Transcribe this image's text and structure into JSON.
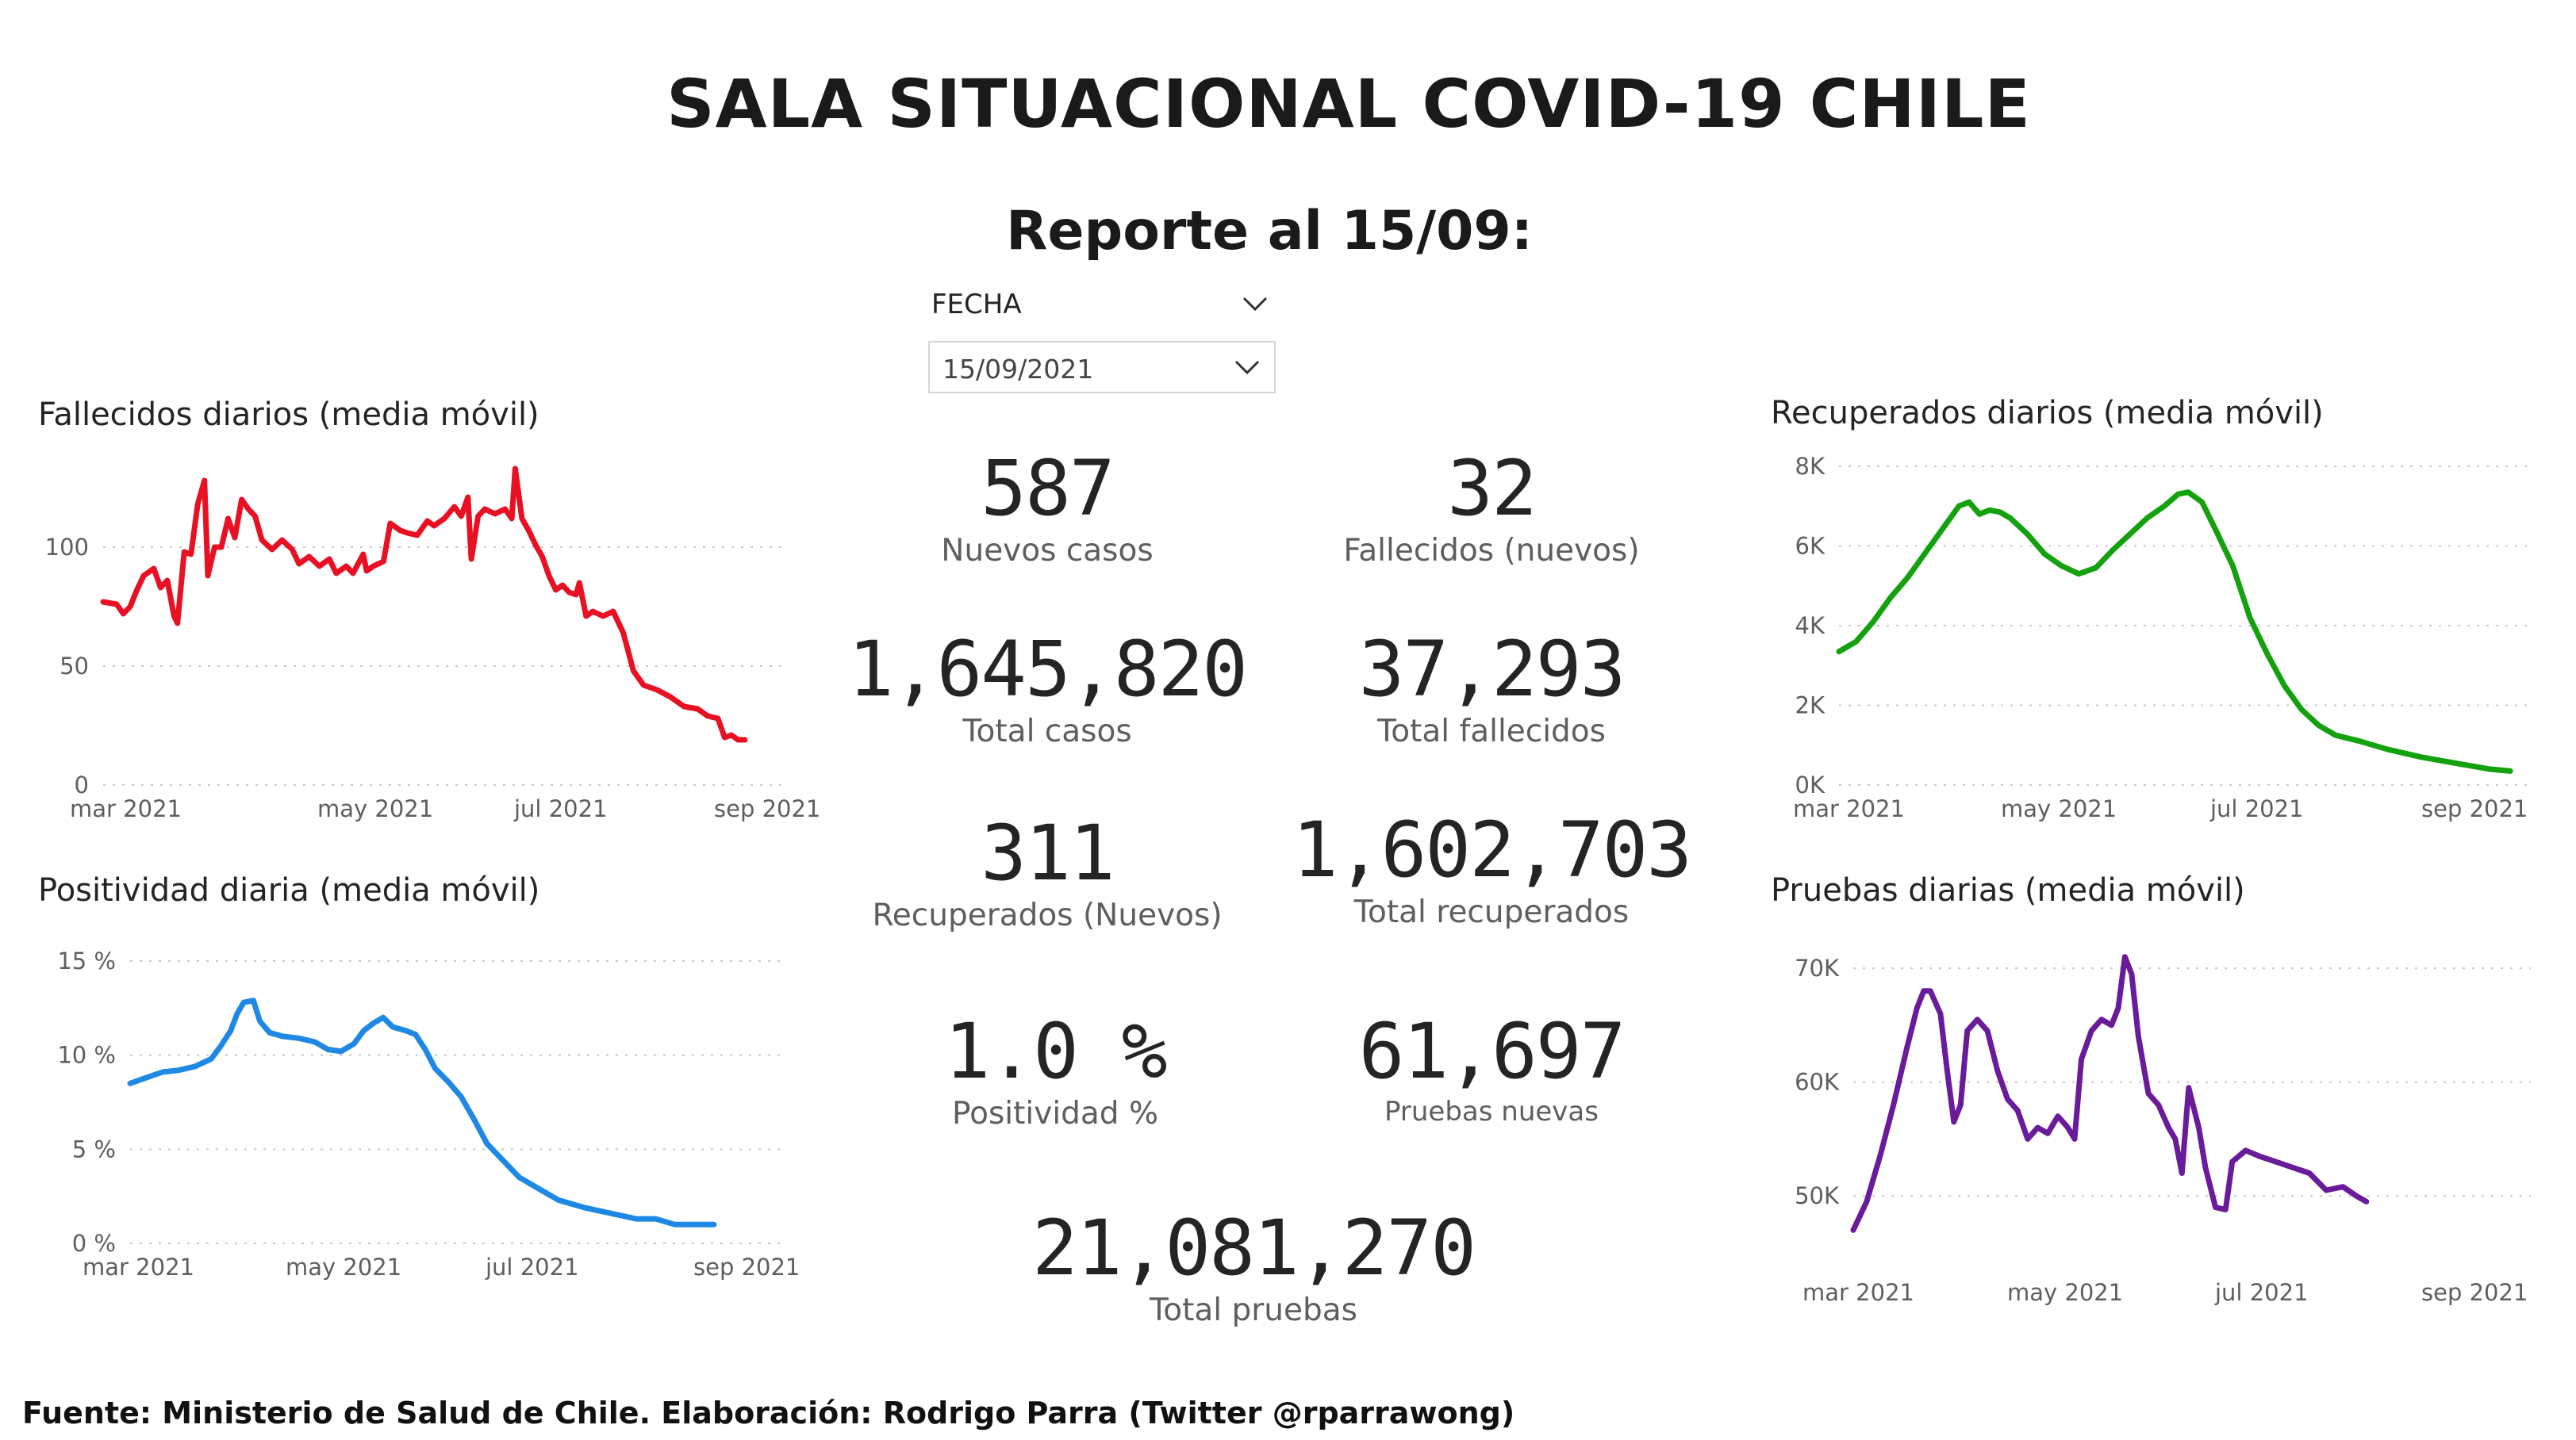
{
  "header": {
    "title": "SALA SITUACIONAL COVID-19 CHILE",
    "report": "Reporte al 15/09:"
  },
  "filter": {
    "label": "FECHA",
    "selected": "15/09/2021"
  },
  "kpis": [
    {
      "value": "587",
      "label": "Nuevos casos"
    },
    {
      "value": "32",
      "label": "Fallecidos (nuevos)"
    },
    {
      "value": "1,645,820",
      "label": "Total casos"
    },
    {
      "value": "37,293",
      "label": "Total fallecidos"
    },
    {
      "value": "311",
      "label": "Recuperados (Nuevos)"
    },
    {
      "value": "1,602,703",
      "label": "Total recuperados"
    },
    {
      "value": "1.0 %",
      "label": "Positividad %"
    },
    {
      "value": "61,697",
      "label": "Pruebas nuevas"
    },
    {
      "value": "21,081,270",
      "label": "Total pruebas"
    }
  ],
  "footer": "Fuente: Ministerio de Salud de Chile. Elaboración: Rodrigo Parra (Twitter @rparrawong)",
  "chart_data": [
    {
      "id": "fallecidos",
      "type": "line",
      "title": "Fallecidos diarios (media móvil)",
      "color": "#e81123",
      "x_tick_labels": [
        "mar 2021",
        "may 2021",
        "jul 2021",
        "sep 2021"
      ],
      "y_tick_labels": [
        "0",
        "50",
        "100"
      ],
      "ylim": [
        0,
        140
      ],
      "xlim": [
        0,
        202
      ],
      "grid": true,
      "points": [
        [
          0,
          77
        ],
        [
          4,
          76
        ],
        [
          6,
          72
        ],
        [
          8,
          75
        ],
        [
          10,
          82
        ],
        [
          12,
          88
        ],
        [
          15,
          91
        ],
        [
          17,
          83
        ],
        [
          19,
          86
        ],
        [
          21,
          71
        ],
        [
          22,
          68
        ],
        [
          24,
          98
        ],
        [
          26,
          97
        ],
        [
          28,
          118
        ],
        [
          30,
          128
        ],
        [
          31,
          88
        ],
        [
          33,
          100
        ],
        [
          35,
          100
        ],
        [
          37,
          112
        ],
        [
          39,
          104
        ],
        [
          41,
          120
        ],
        [
          43,
          116
        ],
        [
          45,
          113
        ],
        [
          47,
          103
        ],
        [
          50,
          99
        ],
        [
          53,
          103
        ],
        [
          56,
          99
        ],
        [
          58,
          93
        ],
        [
          61,
          96
        ],
        [
          64,
          92
        ],
        [
          67,
          95
        ],
        [
          69,
          89
        ],
        [
          72,
          92
        ],
        [
          74,
          89
        ],
        [
          77,
          97
        ],
        [
          78,
          90
        ],
        [
          80,
          92
        ],
        [
          83,
          94
        ],
        [
          85,
          110
        ],
        [
          88,
          107
        ],
        [
          90,
          106
        ],
        [
          93,
          105
        ],
        [
          96,
          111
        ],
        [
          98,
          109
        ],
        [
          101,
          112
        ],
        [
          104,
          117
        ],
        [
          106,
          113
        ],
        [
          108,
          121
        ],
        [
          109,
          95
        ],
        [
          111,
          113
        ],
        [
          113,
          116
        ],
        [
          116,
          114
        ],
        [
          119,
          116
        ],
        [
          121,
          112
        ],
        [
          122,
          133
        ],
        [
          124,
          112
        ],
        [
          126,
          107
        ],
        [
          128,
          101
        ],
        [
          130,
          96
        ],
        [
          132,
          88
        ],
        [
          134,
          82
        ],
        [
          136,
          84
        ],
        [
          138,
          81
        ],
        [
          140,
          80
        ],
        [
          141,
          85
        ],
        [
          143,
          71
        ],
        [
          145,
          73
        ],
        [
          148,
          71
        ],
        [
          151,
          73
        ],
        [
          154,
          64
        ],
        [
          157,
          48
        ],
        [
          160,
          42
        ],
        [
          164,
          40
        ],
        [
          168,
          37
        ],
        [
          172,
          33
        ],
        [
          176,
          32
        ],
        [
          179,
          29
        ],
        [
          182,
          28
        ],
        [
          184,
          20
        ],
        [
          186,
          21
        ],
        [
          188,
          19
        ],
        [
          190,
          19
        ]
      ]
    },
    {
      "id": "positividad",
      "type": "line",
      "title": "Positividad diaria (media móvil)",
      "color": "#1e88e5",
      "x_tick_labels": [
        "mar 2021",
        "may 2021",
        "jul 2021",
        "sep 2021"
      ],
      "y_tick_labels": [
        "0 %",
        "5 %",
        "10 %",
        "15 %"
      ],
      "ylim": [
        0,
        15
      ],
      "xlim": [
        0,
        202
      ],
      "grid": true,
      "points": [
        [
          0,
          8.5
        ],
        [
          5,
          8.8
        ],
        [
          10,
          9.1
        ],
        [
          15,
          9.2
        ],
        [
          20,
          9.4
        ],
        [
          25,
          9.8
        ],
        [
          28,
          10.5
        ],
        [
          31,
          11.3
        ],
        [
          33,
          12.2
        ],
        [
          35,
          12.8
        ],
        [
          38,
          12.9
        ],
        [
          40,
          11.8
        ],
        [
          43,
          11.2
        ],
        [
          47,
          11.0
        ],
        [
          52,
          10.9
        ],
        [
          57,
          10.7
        ],
        [
          61,
          10.3
        ],
        [
          65,
          10.2
        ],
        [
          69,
          10.6
        ],
        [
          72,
          11.3
        ],
        [
          75,
          11.7
        ],
        [
          78,
          12.0
        ],
        [
          81,
          11.5
        ],
        [
          85,
          11.3
        ],
        [
          88,
          11.1
        ],
        [
          91,
          10.3
        ],
        [
          94,
          9.3
        ],
        [
          98,
          8.6
        ],
        [
          102,
          7.8
        ],
        [
          106,
          6.6
        ],
        [
          110,
          5.3
        ],
        [
          115,
          4.4
        ],
        [
          120,
          3.5
        ],
        [
          126,
          2.9
        ],
        [
          132,
          2.3
        ],
        [
          140,
          1.9
        ],
        [
          148,
          1.6
        ],
        [
          156,
          1.3
        ],
        [
          162,
          1.3
        ],
        [
          168,
          1.0
        ],
        [
          174,
          1.0
        ],
        [
          180,
          1.0
        ]
      ]
    },
    {
      "id": "recuperados",
      "type": "line",
      "title": "Recuperados diarios (media móvil)",
      "color": "#13a10e",
      "x_tick_labels": [
        "mar 2021",
        "may 2021",
        "jul 2021",
        "sep 2021"
      ],
      "y_tick_labels": [
        "0K",
        "2K",
        "4K",
        "6K",
        "8K"
      ],
      "ylim": [
        0,
        8000
      ],
      "xlim": [
        0,
        202
      ],
      "grid": true,
      "points": [
        [
          0,
          3350
        ],
        [
          5,
          3600
        ],
        [
          10,
          4100
        ],
        [
          15,
          4700
        ],
        [
          20,
          5200
        ],
        [
          25,
          5800
        ],
        [
          30,
          6400
        ],
        [
          35,
          7000
        ],
        [
          38,
          7100
        ],
        [
          41,
          6800
        ],
        [
          44,
          6900
        ],
        [
          47,
          6850
        ],
        [
          50,
          6700
        ],
        [
          55,
          6300
        ],
        [
          60,
          5800
        ],
        [
          65,
          5500
        ],
        [
          70,
          5300
        ],
        [
          75,
          5450
        ],
        [
          80,
          5900
        ],
        [
          85,
          6300
        ],
        [
          90,
          6700
        ],
        [
          95,
          7000
        ],
        [
          99,
          7300
        ],
        [
          102,
          7350
        ],
        [
          106,
          7100
        ],
        [
          110,
          6400
        ],
        [
          115,
          5500
        ],
        [
          120,
          4200
        ],
        [
          125,
          3300
        ],
        [
          130,
          2500
        ],
        [
          135,
          1900
        ],
        [
          140,
          1500
        ],
        [
          145,
          1250
        ],
        [
          152,
          1100
        ],
        [
          160,
          900
        ],
        [
          170,
          700
        ],
        [
          180,
          550
        ],
        [
          190,
          400
        ],
        [
          196,
          350
        ]
      ]
    },
    {
      "id": "pruebas",
      "type": "line",
      "title": "Pruebas diarias (media móvil)",
      "color": "#6a1b9a",
      "x_tick_labels": [
        "mar 2021",
        "may 2021",
        "jul 2021",
        "sep 2021"
      ],
      "y_tick_labels": [
        "50K",
        "60K",
        "70K"
      ],
      "ylim": [
        45000,
        73000
      ],
      "xlim": [
        0,
        202
      ],
      "grid": true,
      "points": [
        [
          0,
          47000
        ],
        [
          4,
          49500
        ],
        [
          8,
          53500
        ],
        [
          12,
          58000
        ],
        [
          16,
          63000
        ],
        [
          19,
          66500
        ],
        [
          21,
          68000
        ],
        [
          23,
          68000
        ],
        [
          26,
          66000
        ],
        [
          28,
          61000
        ],
        [
          30,
          56500
        ],
        [
          32,
          58000
        ],
        [
          34,
          64500
        ],
        [
          37,
          65500
        ],
        [
          40,
          64500
        ],
        [
          43,
          61000
        ],
        [
          46,
          58500
        ],
        [
          49,
          57500
        ],
        [
          52,
          55000
        ],
        [
          55,
          56000
        ],
        [
          58,
          55500
        ],
        [
          61,
          57000
        ],
        [
          64,
          56000
        ],
        [
          66,
          55000
        ],
        [
          68,
          62000
        ],
        [
          71,
          64500
        ],
        [
          74,
          65500
        ],
        [
          77,
          65000
        ],
        [
          79,
          66500
        ],
        [
          81,
          71000
        ],
        [
          83,
          69500
        ],
        [
          85,
          64000
        ],
        [
          88,
          59000
        ],
        [
          91,
          58000
        ],
        [
          94,
          56000
        ],
        [
          96,
          55000
        ],
        [
          98,
          52000
        ],
        [
          100,
          59500
        ],
        [
          103,
          56000
        ],
        [
          105,
          52500
        ],
        [
          108,
          49000
        ],
        [
          111,
          48800
        ],
        [
          113,
          53000
        ],
        [
          117,
          54000
        ],
        [
          121,
          53500
        ],
        [
          126,
          53000
        ],
        [
          131,
          52500
        ],
        [
          136,
          52000
        ],
        [
          141,
          50500
        ],
        [
          146,
          50800
        ],
        [
          150,
          50000
        ],
        [
          153,
          49500
        ]
      ]
    }
  ]
}
